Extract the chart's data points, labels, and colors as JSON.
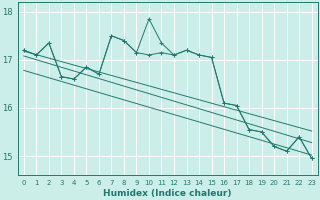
{
  "xlabel": "Humidex (Indice chaleur)",
  "bg_color": "#cceee8",
  "grid_color": "#ffffff",
  "line_color": "#1e7a6e",
  "x_ticks": [
    0,
    1,
    2,
    3,
    4,
    5,
    6,
    7,
    8,
    9,
    10,
    11,
    12,
    13,
    14,
    15,
    16,
    17,
    18,
    19,
    20,
    21,
    22,
    23
  ],
  "ylim": [
    14.6,
    18.2
  ],
  "y_ticks": [
    15,
    16,
    17,
    18
  ],
  "main_line": [
    17.2,
    17.1,
    17.35,
    16.65,
    16.6,
    16.85,
    16.7,
    17.5,
    17.4,
    17.15,
    17.1,
    17.15,
    17.1,
    17.2,
    17.1,
    17.05,
    16.1,
    16.05,
    15.55,
    15.5,
    15.2,
    15.1,
    15.4,
    14.95
  ],
  "spike_line": [
    17.2,
    17.1,
    17.35,
    16.65,
    16.6,
    16.85,
    16.7,
    17.5,
    17.4,
    17.15,
    17.85,
    17.35,
    17.1,
    17.2,
    17.1,
    17.05,
    16.1,
    16.05,
    15.55,
    15.5,
    15.2,
    15.1,
    15.4,
    14.95
  ],
  "trend1": [
    17.18,
    15.52
  ],
  "trend2": [
    17.08,
    15.28
  ],
  "trend3": [
    16.78,
    15.02
  ]
}
